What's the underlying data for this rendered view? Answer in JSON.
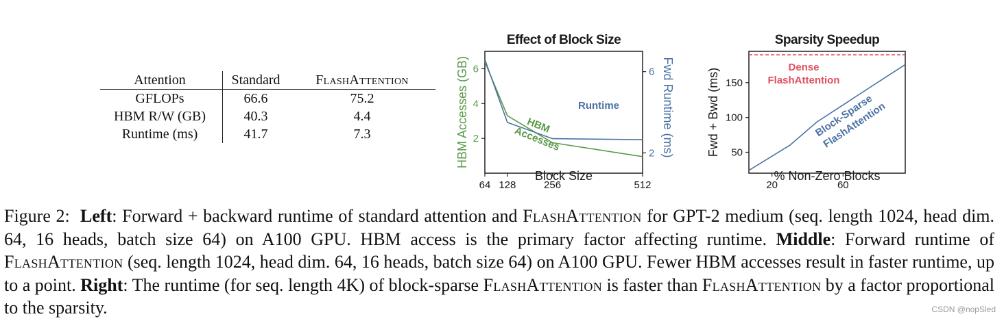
{
  "table": {
    "headers": [
      "Attention",
      "Standard",
      "FlashAttention"
    ],
    "rows": [
      [
        "GFLOPs",
        "66.6",
        "75.2"
      ],
      [
        "HBM R/W (GB)",
        "40.3",
        "4.4"
      ],
      [
        "Runtime (ms)",
        "41.7",
        "7.3"
      ]
    ]
  },
  "chart_data": [
    {
      "type": "line",
      "title": "Effect of Block Size",
      "xlabel": "Block Size",
      "ylabel_left": "HBM Accesses (GB)",
      "ylabel_right": "Fwd Runtime (ms)",
      "x": [
        64,
        128,
        256,
        512
      ],
      "xticks": [
        "64",
        "128",
        "256",
        "512"
      ],
      "xlim": [
        64,
        512
      ],
      "ylim_left": [
        0,
        7
      ],
      "yticks_left": [
        "2",
        "4",
        "6"
      ],
      "ylim_right": [
        1,
        7
      ],
      "yticks_right": [
        "2",
        "6"
      ],
      "series": [
        {
          "name": "HBM Accesses",
          "axis": "left",
          "color": "#5a9a48",
          "values": [
            6.4,
            3.3,
            1.75,
            0.95
          ],
          "label_line1": "HBM",
          "label_line2": "Accesses"
        },
        {
          "name": "Runtime",
          "axis": "right",
          "color": "#4a72a4",
          "values": [
            6.6,
            3.5,
            2.7,
            2.65
          ],
          "label": "Runtime"
        }
      ]
    },
    {
      "type": "line",
      "title": "Sparsity Speedup",
      "xlabel": "% Non-Zero Blocks",
      "ylabel": "Fwd + Bwd (ms)",
      "xlim": [
        7,
        95
      ],
      "ylim": [
        20,
        195
      ],
      "xticks": [
        "20",
        "60"
      ],
      "yticks": [
        "50",
        "100",
        "150"
      ],
      "series": [
        {
          "name": "Dense FlashAttention",
          "style": "dashed",
          "color": "#e05060",
          "x": [
            7,
            95
          ],
          "values": [
            190,
            190
          ],
          "label_line1": "Dense",
          "label_line2": "FlashAttention"
        },
        {
          "name": "Block-Sparse FlashAttention",
          "color": "#4a72a4",
          "x": [
            7,
            30,
            45,
            60,
            75,
            95
          ],
          "values": [
            24,
            60,
            93,
            118,
            143,
            176
          ],
          "label_line1": "Block-Sparse",
          "label_line2": "FlashAttention"
        }
      ]
    }
  ],
  "caption": {
    "lead": "Figure 2:",
    "left_label": "Left",
    "left_text_a": ": Forward + backward runtime of standard attention and ",
    "flashattention": "FlashAttention",
    "left_text_b": " for GPT-2 medium (seq. length 1024, head dim. 64, 16 heads, batch size 64) on A100 GPU. HBM access is the primary factor affecting runtime. ",
    "middle_label": "Middle",
    "middle_text_a": ": Forward runtime of ",
    "middle_text_b": " (seq. length 1024, head dim. 64, 16 heads, batch size 64) on A100 GPU. Fewer HBM accesses result in faster runtime, up to a point. ",
    "right_label": "Right",
    "right_text_a": ": The runtime (for seq. length 4K) of block-sparse ",
    "right_text_b": " is faster than ",
    "right_text_c": " by a factor proportional to the sparsity."
  },
  "watermark": "CSDN @nopSled"
}
